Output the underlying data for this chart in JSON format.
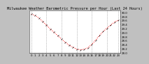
{
  "title": "Milwaukee Weather Barometric Pressure per Hour (Last 24 Hours)",
  "hours": [
    0,
    1,
    2,
    3,
    4,
    5,
    6,
    7,
    8,
    9,
    10,
    11,
    12,
    13,
    14,
    15,
    16,
    17,
    18,
    19,
    20,
    21,
    22,
    23
  ],
  "pressure": [
    29.92,
    29.85,
    29.72,
    29.55,
    29.38,
    29.18,
    29.02,
    28.85,
    28.68,
    28.52,
    28.38,
    28.28,
    28.18,
    28.15,
    28.18,
    28.25,
    28.42,
    28.62,
    28.85,
    29.05,
    29.22,
    29.38,
    29.52,
    29.62
  ],
  "ylim": [
    28.0,
    30.1
  ],
  "yticks": [
    28.0,
    28.2,
    28.4,
    28.6,
    28.8,
    29.0,
    29.2,
    29.4,
    29.6,
    29.8,
    30.0
  ],
  "ytick_labels": [
    "28.0",
    "28.2",
    "28.4",
    "28.6",
    "28.8",
    "29.0",
    "29.2",
    "29.4",
    "29.6",
    "29.8",
    "30.0"
  ],
  "xtick_labels": [
    "0",
    "1",
    "2",
    "3",
    "4",
    "5",
    "6",
    "7",
    "8",
    "9",
    "10",
    "11",
    "12",
    "13",
    "14",
    "15",
    "16",
    "17",
    "18",
    "19",
    "20",
    "21",
    "22",
    "23"
  ],
  "grid_hours": [
    0,
    4,
    8,
    12,
    16,
    20,
    23
  ],
  "line_color": "#ff0000",
  "marker_color": "#000000",
  "bg_color": "#c0c0c0",
  "plot_bg_color": "#ffffff",
  "grid_color": "#888888",
  "title_fontsize": 3.8,
  "tick_fontsize": 2.8
}
